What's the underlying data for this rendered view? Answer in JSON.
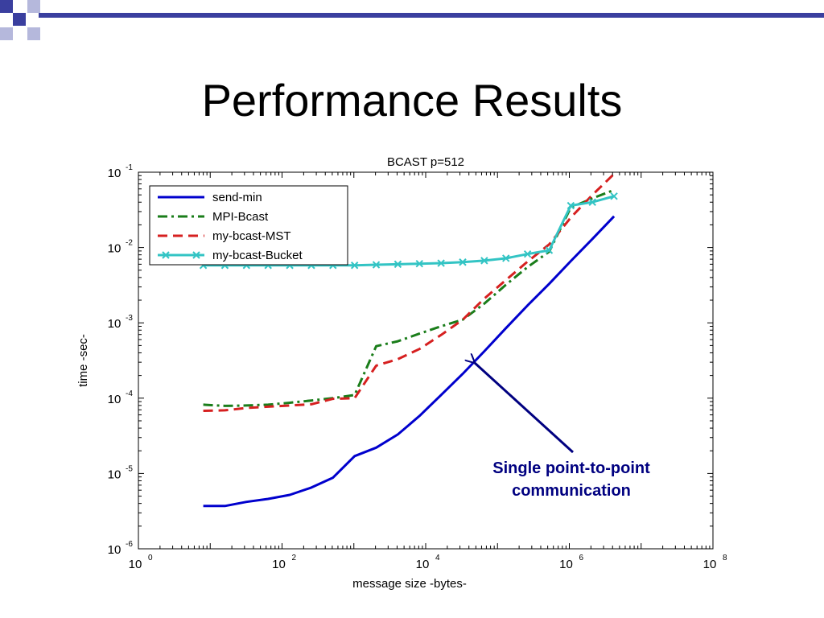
{
  "slide": {
    "title": "Performance Results"
  },
  "colors": {
    "deco_blue": "#3a3f9f",
    "deco_light": "#b5b8dc",
    "annotation": "#000080",
    "send_min": "#0000cd",
    "mpi_bcast": "#1a7d1a",
    "my_bcast_mst": "#d62020",
    "my_bcast_bucket": "#33c4c4"
  },
  "annotation": {
    "line1": "Single point-to-point",
    "line2": "communication",
    "arrow_target": {
      "x": 40000,
      "y": 0.00035
    }
  },
  "chart_data": {
    "type": "line",
    "title": "BCAST p=512",
    "xlabel": "message size -bytes-",
    "ylabel": "time -sec-",
    "xscale": "log",
    "yscale": "log",
    "xlim": [
      1,
      100000000
    ],
    "ylim": [
      1e-06,
      0.1
    ],
    "grid": false,
    "legend": "top-left",
    "x_tick_labels": [
      {
        "base": "10",
        "exp": "0",
        "value": 1
      },
      {
        "base": "10",
        "exp": "2",
        "value": 100
      },
      {
        "base": "10",
        "exp": "4",
        "value": 10000
      },
      {
        "base": "10",
        "exp": "6",
        "value": 1000000
      },
      {
        "base": "10",
        "exp": "8",
        "value": 100000000
      }
    ],
    "y_tick_labels": [
      {
        "base": "10",
        "exp": "-1",
        "value": 0.1
      },
      {
        "base": "10",
        "exp": "-2",
        "value": 0.01
      },
      {
        "base": "10",
        "exp": "-3",
        "value": 0.001
      },
      {
        "base": "10",
        "exp": "-4",
        "value": 0.0001
      },
      {
        "base": "10",
        "exp": "-5",
        "value": 1e-05
      },
      {
        "base": "10",
        "exp": "-6",
        "value": 1e-06
      }
    ],
    "series": [
      {
        "name": "send-min",
        "style": "solid",
        "color": "#0000cd",
        "x": [
          8,
          16,
          32,
          64,
          128,
          256,
          512,
          1024,
          2048,
          4096,
          8192,
          16384,
          32768,
          65536,
          131072,
          262144,
          524288,
          1048576,
          2097152,
          4194304
        ],
        "y": [
          3.7e-06,
          3.7e-06,
          4.2e-06,
          4.6e-06,
          5.2e-06,
          6.5e-06,
          8.8e-06,
          1.7e-05,
          2.2e-05,
          3.3e-05,
          5.8e-05,
          0.00011,
          0.00021,
          0.00042,
          0.00085,
          0.0017,
          0.0033,
          0.0066,
          0.013,
          0.026
        ]
      },
      {
        "name": "MPI-Bcast",
        "style": "dashdot",
        "color": "#1a7d1a",
        "x": [
          8,
          16,
          32,
          64,
          128,
          256,
          512,
          1024,
          2048,
          4096,
          8192,
          16384,
          32768,
          65536,
          131072,
          262144,
          524288,
          1048576,
          2097152,
          4194304
        ],
        "y": [
          8.2e-05,
          7.9e-05,
          8e-05,
          8.2e-05,
          8.7e-05,
          9.3e-05,
          0.0001,
          0.00011,
          0.00049,
          0.00057,
          0.00072,
          0.0009,
          0.0011,
          0.0018,
          0.0032,
          0.0055,
          0.0088,
          0.034,
          0.045,
          0.058
        ]
      },
      {
        "name": "my-bcast-MST",
        "style": "dashed",
        "color": "#d62020",
        "x": [
          8,
          16,
          32,
          64,
          128,
          256,
          512,
          1024,
          2048,
          4096,
          8192,
          16384,
          32768,
          65536,
          131072,
          262144,
          524288,
          1048576,
          2097152,
          4194304
        ],
        "y": [
          6.8e-05,
          6.9e-05,
          7.4e-05,
          7.7e-05,
          8e-05,
          8.3e-05,
          9.8e-05,
          0.0001,
          0.00027,
          0.00033,
          0.00045,
          0.00069,
          0.0011,
          0.0021,
          0.0037,
          0.0065,
          0.011,
          0.025,
          0.05,
          0.095
        ]
      },
      {
        "name": "my-bcast-Bucket",
        "style": "solid-marker",
        "color": "#33c4c4",
        "x": [
          8,
          16,
          32,
          64,
          128,
          256,
          512,
          1024,
          2048,
          4096,
          8192,
          16384,
          32768,
          65536,
          131072,
          262144,
          524288,
          1048576,
          2097152,
          4194304
        ],
        "y": [
          0.0058,
          0.0058,
          0.0058,
          0.0058,
          0.0058,
          0.0058,
          0.0058,
          0.0058,
          0.0059,
          0.006,
          0.0061,
          0.0062,
          0.0064,
          0.0067,
          0.0072,
          0.0082,
          0.0092,
          0.036,
          0.04,
          0.048
        ]
      }
    ]
  }
}
